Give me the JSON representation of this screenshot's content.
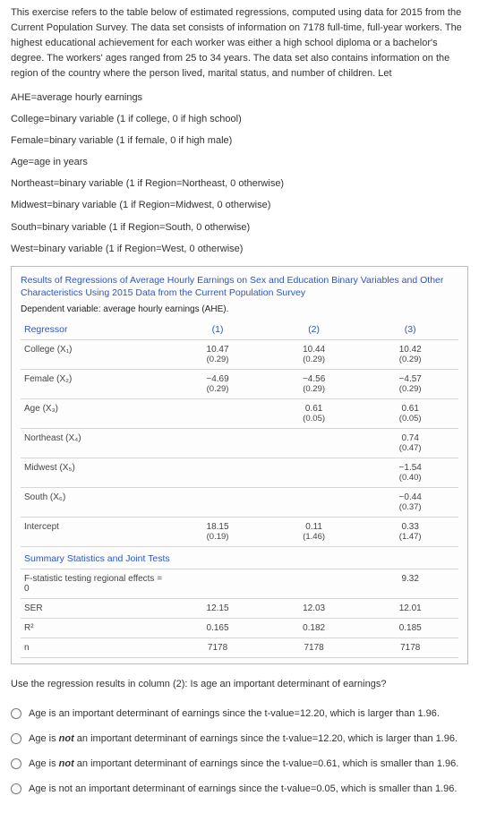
{
  "intro": "This exercise refers to the table below of estimated regressions, computed using data for 2015 from the Current Population Survey. The data set consists of information on 7178 full-time, full-year workers. The highest educational achievement for each worker was either a high school diploma or a bachelor's degree. The workers' ages ranged from 25 to 34 years. The data set also contains information on the region of the country where the person lived, marital status, and number of children. Let",
  "definitions": [
    "AHE=average hourly earnings",
    "College=binary variable (1 if college, 0 if high school)",
    "Female=binary variable (1 if female, 0 if high male)",
    "Age=age in years",
    "Northeast=binary variable (1 if Region=Northeast, 0 otherwise)",
    "Midwest=binary variable (1 if Region=Midwest, 0 otherwise)",
    "South=binary variable (1 if Region=South, 0 otherwise)",
    "West=binary variable (1 if Region=West, 0 otherwise)"
  ],
  "table": {
    "title": "Results of Regressions of Average Hourly Earnings on Sex and Education Binary Variables and Other Characteristics Using 2015 Data from the Current Population Survey",
    "subtitle": "Dependent variable: average hourly earnings (AHE).",
    "header": {
      "regressor": "Regressor",
      "c1": "(1)",
      "c2": "(2)",
      "c3": "(3)"
    },
    "rows": [
      {
        "label": "College (X₁)",
        "c1": {
          "v": "10.47",
          "se": "(0.29)"
        },
        "c2": {
          "v": "10.44",
          "se": "(0.29)"
        },
        "c3": {
          "v": "10.42",
          "se": "(0.29)"
        }
      },
      {
        "label": "Female (X₂)",
        "c1": {
          "v": "−4.69",
          "se": "(0.29)"
        },
        "c2": {
          "v": "−4.56",
          "se": "(0.29)"
        },
        "c3": {
          "v": "−4.57",
          "se": "(0.29)"
        }
      },
      {
        "label": "Age (X₃)",
        "c1": {
          "v": "",
          "se": ""
        },
        "c2": {
          "v": "0.61",
          "se": "(0.05)"
        },
        "c3": {
          "v": "0.61",
          "se": "(0.05)"
        }
      },
      {
        "label": "Northeast (X₄)",
        "c1": {
          "v": "",
          "se": ""
        },
        "c2": {
          "v": "",
          "se": ""
        },
        "c3": {
          "v": "0.74",
          "se": "(0.47)"
        }
      },
      {
        "label": "Midwest (X₅)",
        "c1": {
          "v": "",
          "se": ""
        },
        "c2": {
          "v": "",
          "se": ""
        },
        "c3": {
          "v": "−1.54",
          "se": "(0.40)"
        }
      },
      {
        "label": "South (X₆)",
        "c1": {
          "v": "",
          "se": ""
        },
        "c2": {
          "v": "",
          "se": ""
        },
        "c3": {
          "v": "−0.44",
          "se": "(0.37)"
        }
      },
      {
        "label": "Intercept",
        "c1": {
          "v": "18.15",
          "se": "(0.19)"
        },
        "c2": {
          "v": "0.11",
          "se": "(1.46)"
        },
        "c3": {
          "v": "0.33",
          "se": "(1.47)"
        }
      }
    ],
    "section_label": "Summary Statistics and Joint Tests",
    "summary_rows": [
      {
        "label": "F-statistic testing regional effects = 0",
        "c1": "",
        "c2": "",
        "c3": "9.32"
      },
      {
        "label": "SER",
        "c1": "12.15",
        "c2": "12.03",
        "c3": "12.01"
      },
      {
        "label": "R²",
        "c1": "0.165",
        "c2": "0.182",
        "c3": "0.185"
      },
      {
        "label": "n",
        "c1": "7178",
        "c2": "7178",
        "c3": "7178"
      }
    ]
  },
  "question": "Use the regression results in column (2): Is age an important determinant of earnings?",
  "choices": [
    {
      "pre": "Age is an important determinant of earnings since the t-value=12.20, which is larger than 1.96."
    },
    {
      "pre": "Age is ",
      "bold": "not",
      "post": " an important determinant of earnings since the t-value=12.20, which is larger than 1.96."
    },
    {
      "pre": "Age is ",
      "bold": "not",
      "post": " an important determinant of earnings since the t-value=0.61, which is smaller than 1.96."
    },
    {
      "pre": "Age is not an important determinant of earnings since the t-value=0.05, which is smaller than 1.96."
    }
  ]
}
